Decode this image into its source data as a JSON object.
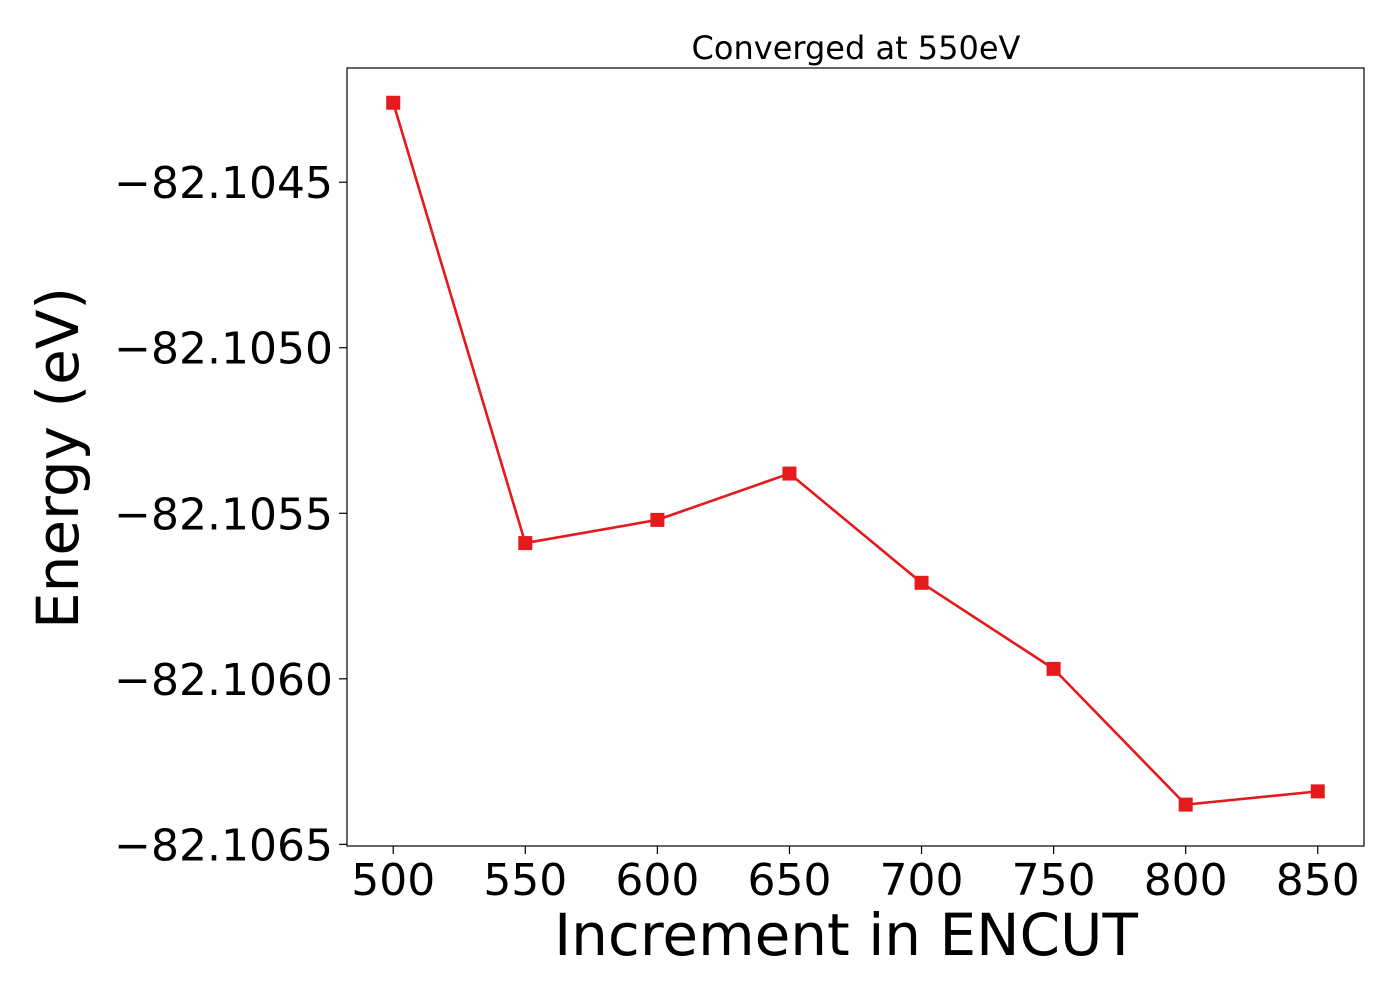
{
  "chart_data": {
    "type": "line",
    "title": "Converged at 550eV",
    "xlabel": "Increment in ENCUT",
    "ylabel": "Energy (eV)",
    "x": [
      500,
      550,
      600,
      650,
      700,
      750,
      800,
      850
    ],
    "series": [
      {
        "values": [
          -82.10426,
          -82.10559,
          -82.10552,
          -82.10538,
          -82.10571,
          -82.10597,
          -82.10638,
          -82.10634
        ],
        "color": "#e41a1c",
        "marker": "square"
      }
    ],
    "xticks": [
      500,
      550,
      600,
      650,
      700,
      750,
      800,
      850
    ],
    "xtick_labels": [
      "500",
      "550",
      "600",
      "650",
      "700",
      "750",
      "800",
      "850"
    ],
    "yticks": [
      -82.1045,
      -82.105,
      -82.1055,
      -82.106,
      -82.1065
    ],
    "ytick_labels": [
      "−82.1045",
      "−82.1050",
      "−82.1055",
      "−82.1060",
      "−82.1065"
    ],
    "xlim": [
      482.5,
      867.5
    ],
    "ylim": [
      -82.106505,
      -82.104155
    ],
    "grid": false,
    "legend": "none"
  }
}
